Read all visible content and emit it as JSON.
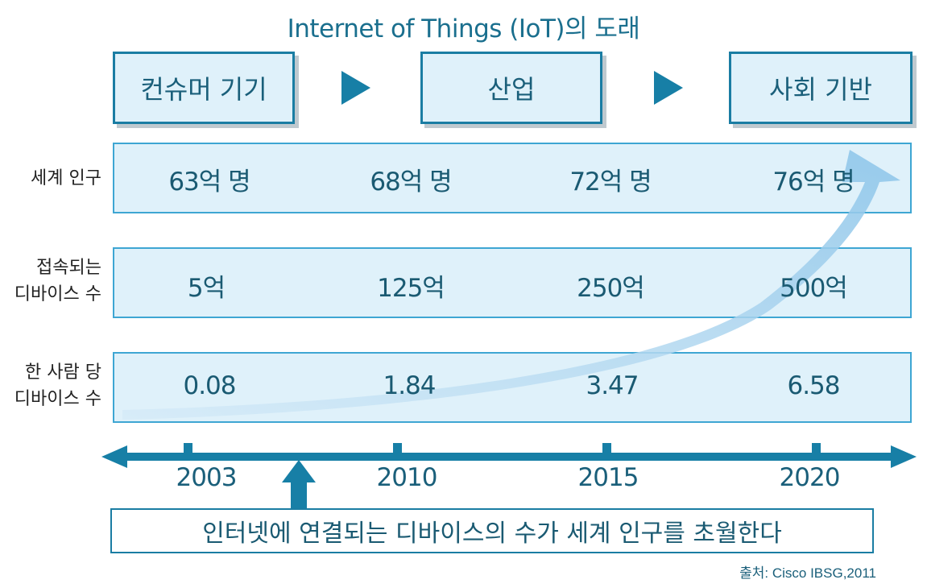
{
  "title": "Internet of Things (IoT)의 도래",
  "stages": [
    "컨슈머 기기",
    "산업",
    "사회 기반"
  ],
  "rows": [
    {
      "label": [
        "세계 인구"
      ],
      "values": [
        "63억 명",
        "68억 명",
        "72억 명",
        "76억 명"
      ]
    },
    {
      "label": [
        "접속되는",
        "디바이스 수"
      ],
      "values": [
        "5억",
        "125억",
        "250억",
        "500억"
      ]
    },
    {
      "label": [
        "한 사람 당",
        "디바이스 수"
      ],
      "values": [
        "0.08",
        "1.84",
        "3.47",
        "6.58"
      ]
    }
  ],
  "timeline": {
    "years": [
      "2003",
      "2010",
      "2015",
      "2020"
    ]
  },
  "conclusion": "인터넷에 연결되는 디바이스의 수가 세계 인구를 초월한다",
  "source": "출처: Cisco IBSG,2011",
  "colors": {
    "primary": "#177fa6",
    "box_fill": "#dff1fa",
    "row_border": "#3ea6d3",
    "curve": "#a9d3ee"
  },
  "icons": [
    "play-arrow-icon",
    "up-arrow-icon",
    "double-arrow-timeline",
    "growth-curve-arrow"
  ]
}
